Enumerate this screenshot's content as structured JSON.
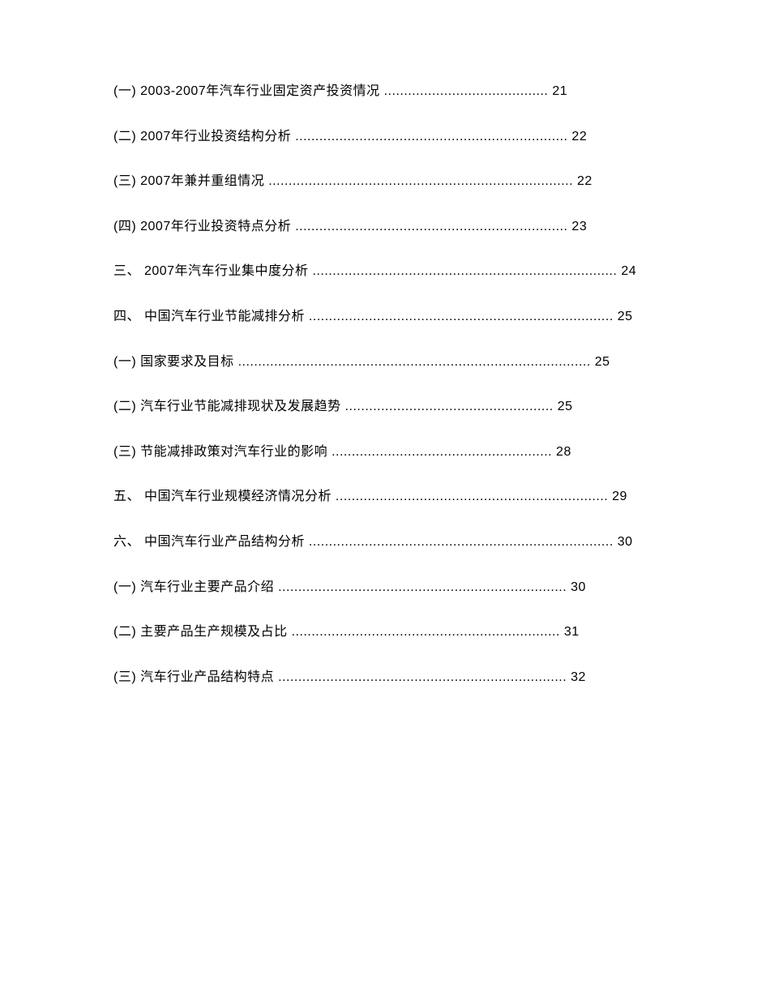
{
  "entries": [
    {
      "label": "(一)",
      "title": "2003-2007年汽车行业固定资产投资情况",
      "dots": ".........................................",
      "page": "21"
    },
    {
      "label": "(二)",
      "title": "2007年行业投资结构分析",
      "dots": "....................................................................",
      "page": " 22"
    },
    {
      "label": "(三)",
      "title": "2007年兼并重组情况",
      "dots": "............................................................................",
      "page": "22"
    },
    {
      "label": "(四)",
      "title": "2007年行业投资特点分析",
      "dots": "....................................................................",
      "page": " 23"
    },
    {
      "label": "三、",
      "title": " 2007年汽车行业集中度分析",
      "dots": "............................................................................",
      "page": "24"
    },
    {
      "label": "四、",
      "title": " 中国汽车行业节能减排分析",
      "dots": "............................................................................",
      "page": "25"
    },
    {
      "label": "(一)",
      "title": "国家要求及目标",
      "dots": "........................................................................................",
      "page": "25"
    },
    {
      "label": "(二)",
      "title": "汽车行业节能减排现状及发展趋势",
      "dots": "....................................................",
      "page": "25"
    },
    {
      "label": "(三)",
      "title": "节能减排政策对汽车行业的影响",
      "dots": ".......................................................",
      "page": "28"
    },
    {
      "label": "五、",
      "title": " 中国汽车行业规模经济情况分析",
      "dots": "....................................................................",
      "page": "29"
    },
    {
      "label": "六、",
      "title": " 中国汽车行业产品结构分析",
      "dots": "............................................................................",
      "page": "30"
    },
    {
      "label": "(一)",
      "title": "汽车行业主要产品介绍",
      "dots": "........................................................................",
      "page": " 30"
    },
    {
      "label": "(二)",
      "title": "主要产品生产规模及占比",
      "dots": "...................................................................",
      "page": "31"
    },
    {
      "label": "(三)",
      "title": "汽车行业产品结构特点",
      "dots": "........................................................................",
      "page": " 32"
    }
  ]
}
